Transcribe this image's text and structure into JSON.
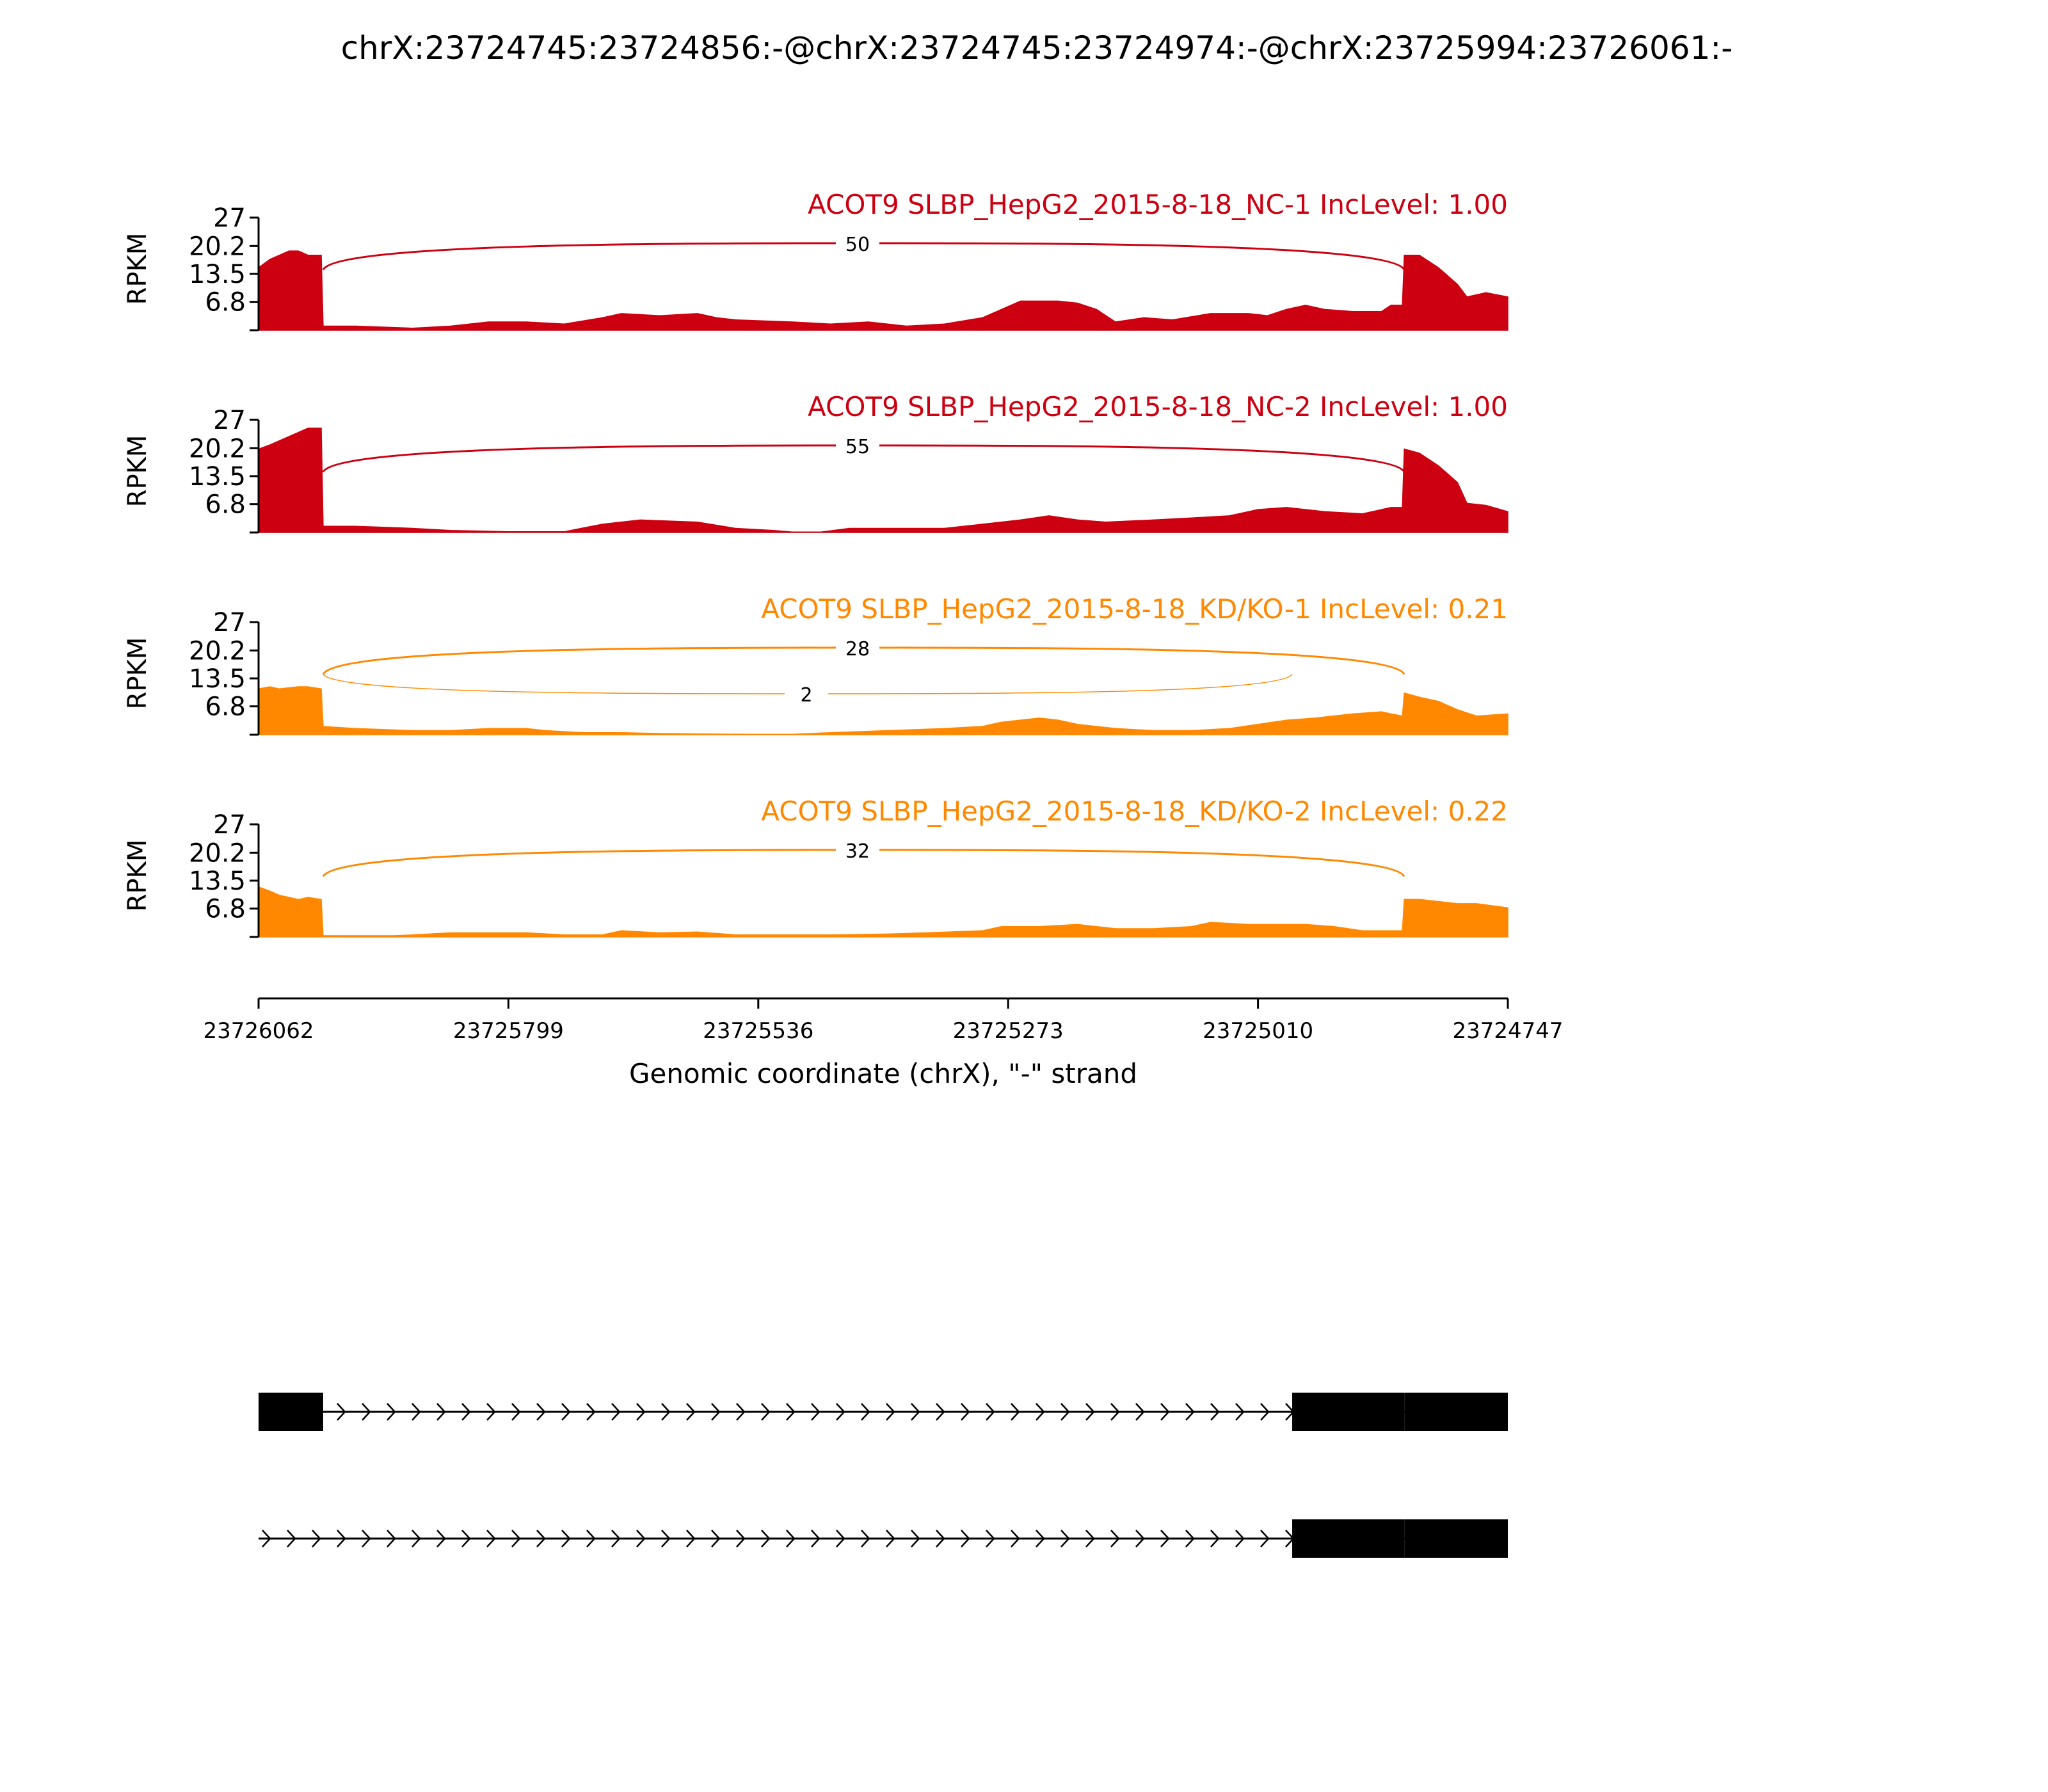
{
  "figure": {
    "title": "chrX:23724745:23724856:-@chrX:23724745:23724974:-@chrX:23725994:23726061:-"
  },
  "colors": {
    "nc": "#cc0011",
    "kd": "#ff8800",
    "axis": "#000000",
    "gene": "#000000"
  },
  "chart_data": {
    "type": "area",
    "title": "chrX:23724745:23724856:-@chrX:23724745:23724974:-@chrX:23725994:23726061:-",
    "xlabel": "Genomic coordinate (chrX), \"-\" strand",
    "ylabel": "RPKM",
    "x_range": [
      23726062,
      23724747
    ],
    "x_ticks": [
      "23726062",
      "23725799",
      "23725536",
      "23725273",
      "23725010",
      "23724747"
    ],
    "y_range": [
      0,
      27
    ],
    "y_ticks": [
      "6.8",
      "13.5",
      "20.2",
      "27"
    ],
    "panels": [
      {
        "label": "ACOT9 SLBP_HepG2_2015-8-18_NC-1 IncLevel: 1.00",
        "color_key": "nc",
        "coverage": [
          [
            23726062,
            15
          ],
          [
            23726050,
            17
          ],
          [
            23726040,
            18
          ],
          [
            23726030,
            19
          ],
          [
            23726020,
            19
          ],
          [
            23726010,
            18
          ],
          [
            23725996,
            18
          ],
          [
            23725994,
            1
          ],
          [
            23725960,
            1
          ],
          [
            23725900,
            0.5
          ],
          [
            23725860,
            1
          ],
          [
            23725820,
            2
          ],
          [
            23725780,
            2
          ],
          [
            23725740,
            1.5
          ],
          [
            23725700,
            3
          ],
          [
            23725680,
            4
          ],
          [
            23725640,
            3.5
          ],
          [
            23725600,
            4
          ],
          [
            23725580,
            3
          ],
          [
            23725560,
            2.5
          ],
          [
            23725500,
            2
          ],
          [
            23725460,
            1.5
          ],
          [
            23725420,
            2
          ],
          [
            23725380,
            1
          ],
          [
            23725340,
            1.5
          ],
          [
            23725300,
            3
          ],
          [
            23725280,
            5
          ],
          [
            23725260,
            7
          ],
          [
            23725220,
            7
          ],
          [
            23725200,
            6.5
          ],
          [
            23725180,
            5
          ],
          [
            23725160,
            2
          ],
          [
            23725130,
            3
          ],
          [
            23725100,
            2.5
          ],
          [
            23725060,
            4
          ],
          [
            23725020,
            4
          ],
          [
            23725000,
            3.5
          ],
          [
            23724980,
            5
          ],
          [
            23724960,
            6
          ],
          [
            23724940,
            5
          ],
          [
            23724910,
            4.5
          ],
          [
            23724880,
            4.5
          ],
          [
            23724870,
            6
          ],
          [
            23724858,
            6
          ],
          [
            23724856,
            18
          ],
          [
            23724840,
            18
          ],
          [
            23724820,
            15
          ],
          [
            23724800,
            11
          ],
          [
            23724790,
            8
          ],
          [
            23724770,
            9
          ],
          [
            23724747,
            8
          ]
        ],
        "junctions": [
          {
            "from": 23725994,
            "to": 23724856,
            "count": "50"
          }
        ]
      },
      {
        "label": "ACOT9 SLBP_HepG2_2015-8-18_NC-2 IncLevel: 1.00",
        "color_key": "nc",
        "coverage": [
          [
            23726062,
            20
          ],
          [
            23726050,
            21
          ],
          [
            23726040,
            22
          ],
          [
            23726020,
            24
          ],
          [
            23726010,
            25
          ],
          [
            23725996,
            25
          ],
          [
            23725994,
            1.5
          ],
          [
            23725960,
            1.5
          ],
          [
            23725900,
            1
          ],
          [
            23725860,
            0.5
          ],
          [
            23725800,
            0.2
          ],
          [
            23725740,
            0.2
          ],
          [
            23725700,
            2
          ],
          [
            23725660,
            3
          ],
          [
            23725600,
            2.5
          ],
          [
            23725560,
            1
          ],
          [
            23725520,
            0.5
          ],
          [
            23725500,
            0.1
          ],
          [
            23725470,
            0.1
          ],
          [
            23725440,
            1
          ],
          [
            23725380,
            1
          ],
          [
            23725340,
            1
          ],
          [
            23725300,
            2
          ],
          [
            23725260,
            3
          ],
          [
            23725230,
            4
          ],
          [
            23725200,
            3
          ],
          [
            23725170,
            2.5
          ],
          [
            23725120,
            3
          ],
          [
            23725080,
            3.5
          ],
          [
            23725040,
            4
          ],
          [
            23725010,
            5.5
          ],
          [
            23724980,
            6
          ],
          [
            23724940,
            5
          ],
          [
            23724900,
            4.5
          ],
          [
            23724870,
            6
          ],
          [
            23724858,
            6
          ],
          [
            23724856,
            20
          ],
          [
            23724840,
            19
          ],
          [
            23724820,
            16
          ],
          [
            23724800,
            12
          ],
          [
            23724790,
            7
          ],
          [
            23724770,
            6.5
          ],
          [
            23724747,
            5
          ]
        ],
        "junctions": [
          {
            "from": 23725994,
            "to": 23724856,
            "count": "55"
          }
        ]
      },
      {
        "label": "ACOT9 SLBP_HepG2_2015-8-18_KD/KO-1 IncLevel: 0.21",
        "color_key": "kd",
        "coverage": [
          [
            23726062,
            11
          ],
          [
            23726050,
            11.5
          ],
          [
            23726040,
            11
          ],
          [
            23726020,
            11.5
          ],
          [
            23726010,
            11.5
          ],
          [
            23725996,
            11
          ],
          [
            23725994,
            2
          ],
          [
            23725960,
            1.5
          ],
          [
            23725900,
            1
          ],
          [
            23725860,
            1
          ],
          [
            23725820,
            1.5
          ],
          [
            23725780,
            1.5
          ],
          [
            23725760,
            1
          ],
          [
            23725720,
            0.5
          ],
          [
            23725680,
            0.5
          ],
          [
            23725640,
            0.3
          ],
          [
            23725600,
            0.2
          ],
          [
            23725540,
            0.1
          ],
          [
            23725500,
            0.1
          ],
          [
            23725460,
            0.5
          ],
          [
            23725400,
            1
          ],
          [
            23725340,
            1.5
          ],
          [
            23725300,
            2
          ],
          [
            23725280,
            3
          ],
          [
            23725240,
            4
          ],
          [
            23725220,
            3.5
          ],
          [
            23725200,
            2.5
          ],
          [
            23725160,
            1.5
          ],
          [
            23725120,
            1
          ],
          [
            23725080,
            1
          ],
          [
            23725040,
            1.5
          ],
          [
            23725010,
            2.5
          ],
          [
            23724980,
            3.5
          ],
          [
            23724950,
            4
          ],
          [
            23724910,
            5
          ],
          [
            23724880,
            5.5
          ],
          [
            23724870,
            5
          ],
          [
            23724858,
            4.5
          ],
          [
            23724856,
            10
          ],
          [
            23724840,
            9
          ],
          [
            23724820,
            8
          ],
          [
            23724800,
            6
          ],
          [
            23724780,
            4.5
          ],
          [
            23724747,
            5
          ]
        ],
        "junctions": [
          {
            "from": 23725994,
            "to": 23724856,
            "count": "28"
          },
          {
            "from": 23725994,
            "to": 23724974,
            "count": "2"
          }
        ]
      },
      {
        "label": "ACOT9 SLBP_HepG2_2015-8-18_KD/KO-2 IncLevel: 0.22",
        "color_key": "kd",
        "coverage": [
          [
            23726062,
            12
          ],
          [
            23726050,
            11
          ],
          [
            23726040,
            10
          ],
          [
            23726020,
            9
          ],
          [
            23726010,
            9.5
          ],
          [
            23725996,
            9
          ],
          [
            23725994,
            0.3
          ],
          [
            23725960,
            0.3
          ],
          [
            23725920,
            0.3
          ],
          [
            23725900,
            0.5
          ],
          [
            23725860,
            1
          ],
          [
            23725820,
            1
          ],
          [
            23725780,
            1
          ],
          [
            23725740,
            0.5
          ],
          [
            23725700,
            0.5
          ],
          [
            23725680,
            1.5
          ],
          [
            23725640,
            1
          ],
          [
            23725600,
            1.2
          ],
          [
            23725560,
            0.5
          ],
          [
            23725500,
            0.5
          ],
          [
            23725460,
            0.5
          ],
          [
            23725400,
            0.7
          ],
          [
            23725360,
            1
          ],
          [
            23725300,
            1.5
          ],
          [
            23725280,
            2.5
          ],
          [
            23725240,
            2.5
          ],
          [
            23725200,
            3
          ],
          [
            23725160,
            2
          ],
          [
            23725120,
            2
          ],
          [
            23725080,
            2.5
          ],
          [
            23725060,
            3.5
          ],
          [
            23725020,
            3
          ],
          [
            23725000,
            3
          ],
          [
            23724960,
            3
          ],
          [
            23724930,
            2.5
          ],
          [
            23724900,
            1.5
          ],
          [
            23724870,
            1.5
          ],
          [
            23724858,
            1.5
          ],
          [
            23724856,
            9
          ],
          [
            23724840,
            9
          ],
          [
            23724800,
            8
          ],
          [
            23724780,
            8
          ],
          [
            23724747,
            7
          ]
        ],
        "junctions": [
          {
            "from": 23725994,
            "to": 23724856,
            "count": "32"
          }
        ]
      }
    ],
    "gene_models": [
      {
        "exons": [
          [
            23726062,
            23725994
          ],
          [
            23724974,
            23724856
          ],
          [
            23724856,
            23724747
          ]
        ]
      },
      {
        "exons": [
          [
            23724974,
            23724856
          ],
          [
            23724856,
            23724747
          ]
        ],
        "intron_start": 23726062
      }
    ]
  }
}
